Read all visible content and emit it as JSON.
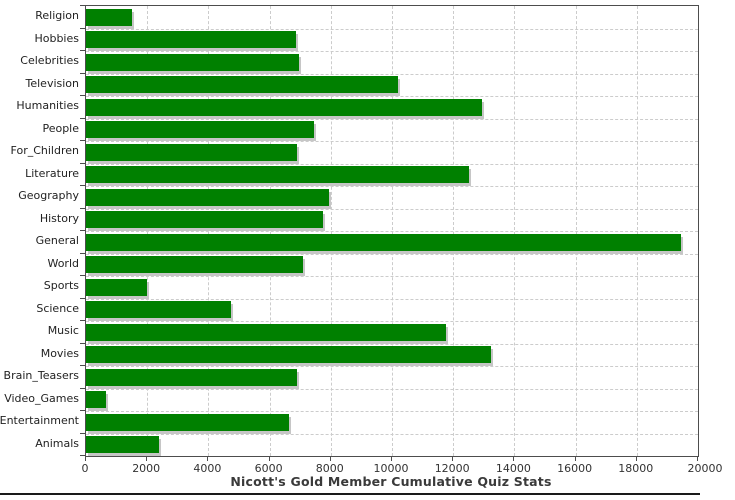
{
  "chart_data": {
    "type": "bar",
    "orientation": "horizontal",
    "title": "Nicott's Gold Member Cumulative Quiz Stats",
    "categories": [
      "Religion",
      "Hobbies",
      "Celebrities",
      "Television",
      "Humanities",
      "People",
      "For_Children",
      "Literature",
      "Geography",
      "History",
      "General",
      "World",
      "Sports",
      "Science",
      "Music",
      "Movies",
      "Brain_Teasers",
      "Video_Games",
      "Entertainment",
      "Animals"
    ],
    "values": [
      1500,
      6850,
      6950,
      10200,
      12950,
      7450,
      6900,
      12500,
      7950,
      7750,
      19450,
      7100,
      2000,
      4750,
      11750,
      13250,
      6900,
      650,
      6650,
      2400
    ],
    "xlabel": "",
    "ylabel": "",
    "xlim": [
      0,
      20000
    ],
    "x_ticks": [
      0,
      2000,
      4000,
      6000,
      8000,
      10000,
      12000,
      14000,
      16000,
      18000,
      20000
    ],
    "grid": "dashed",
    "legend": "none",
    "bar_color": "#008000",
    "shadow_color": "#c6c6c6",
    "gridline_color": "#cccccc",
    "axis_color": "#4d4d4d",
    "title_color": "#3a3a3a"
  }
}
